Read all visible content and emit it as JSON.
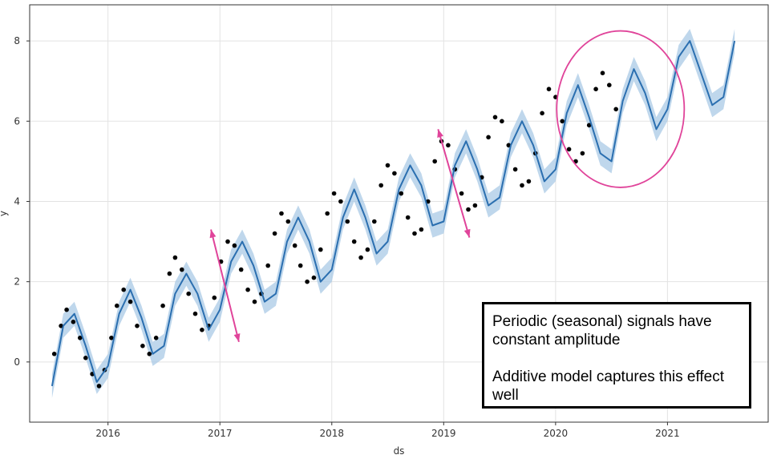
{
  "chart_data": {
    "type": "scatter",
    "title": "",
    "xlabel": "ds",
    "ylabel": "y",
    "xlim": [
      2015.3,
      2021.9
    ],
    "ylim": [
      -1.5,
      8.9
    ],
    "x_ticks": [
      "2016",
      "2017",
      "2018",
      "2019",
      "2020",
      "2021"
    ],
    "y_ticks": [
      "0",
      "2",
      "4",
      "6",
      "8"
    ],
    "grid": true,
    "series": [
      {
        "type": "scatter",
        "color": "#000000",
        "x": [
          2015.52,
          2015.58,
          2015.63,
          2015.69,
          2015.75,
          2015.8,
          2015.86,
          2015.92,
          2015.97,
          2016.03,
          2016.08,
          2016.14,
          2016.2,
          2016.26,
          2016.31,
          2016.37,
          2016.43,
          2016.49,
          2016.55,
          2016.6,
          2016.66,
          2016.72,
          2016.78,
          2016.84,
          2016.9,
          2016.95,
          2017.01,
          2017.07,
          2017.13,
          2017.19,
          2017.25,
          2017.31,
          2017.37,
          2017.43,
          2017.49,
          2017.55,
          2017.61,
          2017.67,
          2017.72,
          2017.78,
          2017.84,
          2017.9,
          2017.96,
          2018.02,
          2018.08,
          2018.14,
          2018.2,
          2018.26,
          2018.32,
          2018.38,
          2018.44,
          2018.5,
          2018.56,
          2018.62,
          2018.68,
          2018.74,
          2018.8,
          2018.86,
          2018.92,
          2018.98,
          2019.04,
          2019.1,
          2019.16,
          2019.22,
          2019.28,
          2019.34,
          2019.4,
          2019.46,
          2019.52,
          2019.58,
          2019.64,
          2019.7,
          2019.76,
          2019.82,
          2019.88,
          2019.94,
          2020.0,
          2020.06,
          2020.12,
          2020.18,
          2020.24,
          2020.3,
          2020.36,
          2020.42,
          2020.48,
          2020.54
        ],
        "y": [
          0.2,
          0.9,
          1.3,
          1.0,
          0.6,
          0.1,
          -0.3,
          -0.6,
          -0.2,
          0.6,
          1.4,
          1.8,
          1.5,
          0.9,
          0.4,
          0.2,
          0.6,
          1.4,
          2.2,
          2.6,
          2.3,
          1.7,
          1.2,
          0.8,
          0.9,
          1.6,
          2.5,
          3.0,
          2.9,
          2.3,
          1.8,
          1.5,
          1.7,
          2.4,
          3.2,
          3.7,
          3.5,
          2.9,
          2.4,
          2.0,
          2.1,
          2.8,
          3.7,
          4.2,
          4.0,
          3.5,
          3.0,
          2.6,
          2.8,
          3.5,
          4.4,
          4.9,
          4.7,
          4.2,
          3.6,
          3.2,
          3.3,
          4.0,
          5.0,
          5.5,
          5.4,
          4.8,
          4.2,
          3.8,
          3.9,
          4.6,
          5.6,
          6.1,
          6.0,
          5.4,
          4.8,
          4.4,
          4.5,
          5.2,
          6.2,
          6.8,
          6.6,
          6.0,
          5.3,
          5.0,
          5.2,
          5.9,
          6.8,
          7.2,
          6.9,
          6.3
        ]
      },
      {
        "type": "line",
        "color": "#2b6fb0",
        "band_color": "#a9c9e6",
        "band_width": 0.3,
        "x": [
          2015.5,
          2015.6,
          2015.7,
          2015.8,
          2015.9,
          2016.0,
          2016.1,
          2016.2,
          2016.3,
          2016.4,
          2016.5,
          2016.6,
          2016.7,
          2016.8,
          2016.9,
          2017.0,
          2017.1,
          2017.2,
          2017.3,
          2017.4,
          2017.5,
          2017.6,
          2017.7,
          2017.8,
          2017.9,
          2018.0,
          2018.1,
          2018.2,
          2018.3,
          2018.4,
          2018.5,
          2018.6,
          2018.7,
          2018.8,
          2018.9,
          2019.0,
          2019.1,
          2019.2,
          2019.3,
          2019.4,
          2019.5,
          2019.6,
          2019.7,
          2019.8,
          2019.9,
          2020.0,
          2020.1,
          2020.2,
          2020.3,
          2020.4,
          2020.5,
          2020.6,
          2020.7,
          2020.8,
          2020.9,
          2021.0,
          2021.1,
          2021.2,
          2021.3,
          2021.4,
          2021.5,
          2021.6
        ],
        "y": [
          -0.6,
          0.9,
          1.2,
          0.4,
          -0.5,
          -0.1,
          1.2,
          1.8,
          1.1,
          0.2,
          0.4,
          1.7,
          2.2,
          1.7,
          0.8,
          1.3,
          2.5,
          3.0,
          2.4,
          1.5,
          1.7,
          3.0,
          3.6,
          3.0,
          2.0,
          2.3,
          3.6,
          4.3,
          3.6,
          2.7,
          3.0,
          4.3,
          4.9,
          4.4,
          3.4,
          3.5,
          4.9,
          5.5,
          4.8,
          3.9,
          4.1,
          5.4,
          6.0,
          5.4,
          4.5,
          4.8,
          6.2,
          6.9,
          6.1,
          5.2,
          5.0,
          6.5,
          7.3,
          6.7,
          5.8,
          6.3,
          7.6,
          8.0,
          7.2,
          6.4,
          6.6,
          8.0
        ]
      }
    ],
    "annotations": [
      {
        "type": "double-arrow",
        "color": "#e0449a",
        "from": [
          2016.92,
          3.3
        ],
        "to": [
          2017.17,
          0.5
        ]
      },
      {
        "type": "double-arrow",
        "color": "#e0449a",
        "from": [
          2018.95,
          5.8
        ],
        "to": [
          2019.23,
          3.1
        ]
      },
      {
        "type": "circle",
        "color": "#e0449a",
        "center": [
          2020.58,
          6.3
        ],
        "rx": 0.57,
        "ry": 1.95
      }
    ]
  },
  "note": {
    "line1": "Periodic (seasonal) signals have constant amplitude",
    "line2": "Additive model captures this effect well"
  }
}
